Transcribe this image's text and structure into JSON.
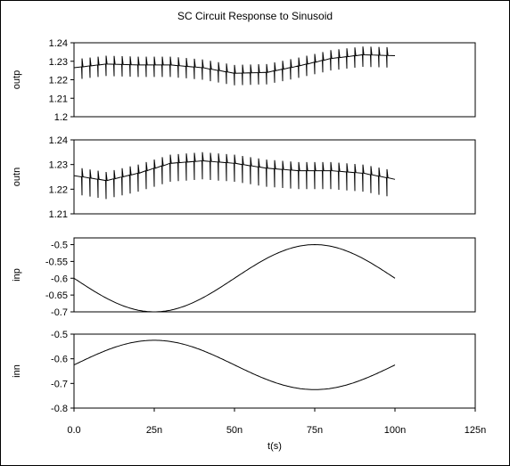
{
  "chart_data": {
    "type": "line",
    "title": "SC Circuit Response to Sinusoid",
    "xlabel": "t(s)",
    "xlim": [
      0,
      125
    ],
    "x_unit": "n",
    "x_ticks": [
      0,
      25,
      50,
      75,
      100,
      125
    ],
    "x_tick_labels": [
      "0.0",
      "25n",
      "50n",
      "75n",
      "100n",
      "125n"
    ],
    "grid": false,
    "panels": [
      {
        "name": "outp",
        "ylabel": "outp",
        "ylim": [
          1.2,
          1.24
        ],
        "y_ticks": [
          1.2,
          1.21,
          1.22,
          1.23,
          1.24
        ],
        "y_tick_labels": [
          "1.2",
          "1.21",
          "1.22",
          "1.23",
          "1.24"
        ],
        "trend": {
          "x": [
            0,
            10,
            20,
            30,
            40,
            50,
            60,
            70,
            80,
            90,
            100
          ],
          "y": [
            1.2265,
            1.2285,
            1.228,
            1.228,
            1.2265,
            1.2235,
            1.224,
            1.2275,
            1.2315,
            1.2335,
            1.233
          ]
        },
        "spikes": {
          "spacing": 2.5,
          "start": 2.5,
          "end": 97.5,
          "down_depth": 0.0065,
          "up_height": 0.0045
        }
      },
      {
        "name": "outn",
        "ylabel": "outn",
        "ylim": [
          1.21,
          1.24
        ],
        "y_ticks": [
          1.21,
          1.22,
          1.23,
          1.24
        ],
        "y_tick_labels": [
          "1.21",
          "1.22",
          "1.23",
          "1.24"
        ],
        "trend": {
          "x": [
            0,
            10,
            20,
            30,
            40,
            50,
            60,
            70,
            80,
            90,
            100
          ],
          "y": [
            1.2255,
            1.2235,
            1.2265,
            1.2305,
            1.2315,
            1.2305,
            1.2285,
            1.2275,
            1.2275,
            1.2265,
            1.224
          ]
        },
        "spikes": {
          "spacing": 2.5,
          "start": 2.5,
          "end": 97.5,
          "down_depth": 0.0075,
          "up_height": 0.0035
        }
      },
      {
        "name": "inp",
        "ylabel": "inp",
        "ylim": [
          -0.7,
          -0.48
        ],
        "y_ticks": [
          -0.7,
          -0.65,
          -0.6,
          -0.55,
          -0.5
        ],
        "y_tick_labels": [
          "-0.7",
          "-0.65",
          "-0.6",
          "-0.55",
          "-0.5"
        ],
        "sine": {
          "offset": -0.6,
          "amplitude": 0.1,
          "period": 100,
          "phase_sign": -1
        }
      },
      {
        "name": "inn",
        "ylabel": "inn",
        "ylim": [
          -0.8,
          -0.5
        ],
        "y_ticks": [
          -0.8,
          -0.7,
          -0.6,
          -0.5
        ],
        "y_tick_labels": [
          "-0.8",
          "-0.7",
          "-0.6",
          "-0.5"
        ],
        "sine": {
          "offset": -0.625,
          "amplitude": 0.1,
          "period": 100,
          "phase_sign": 1
        }
      }
    ]
  }
}
